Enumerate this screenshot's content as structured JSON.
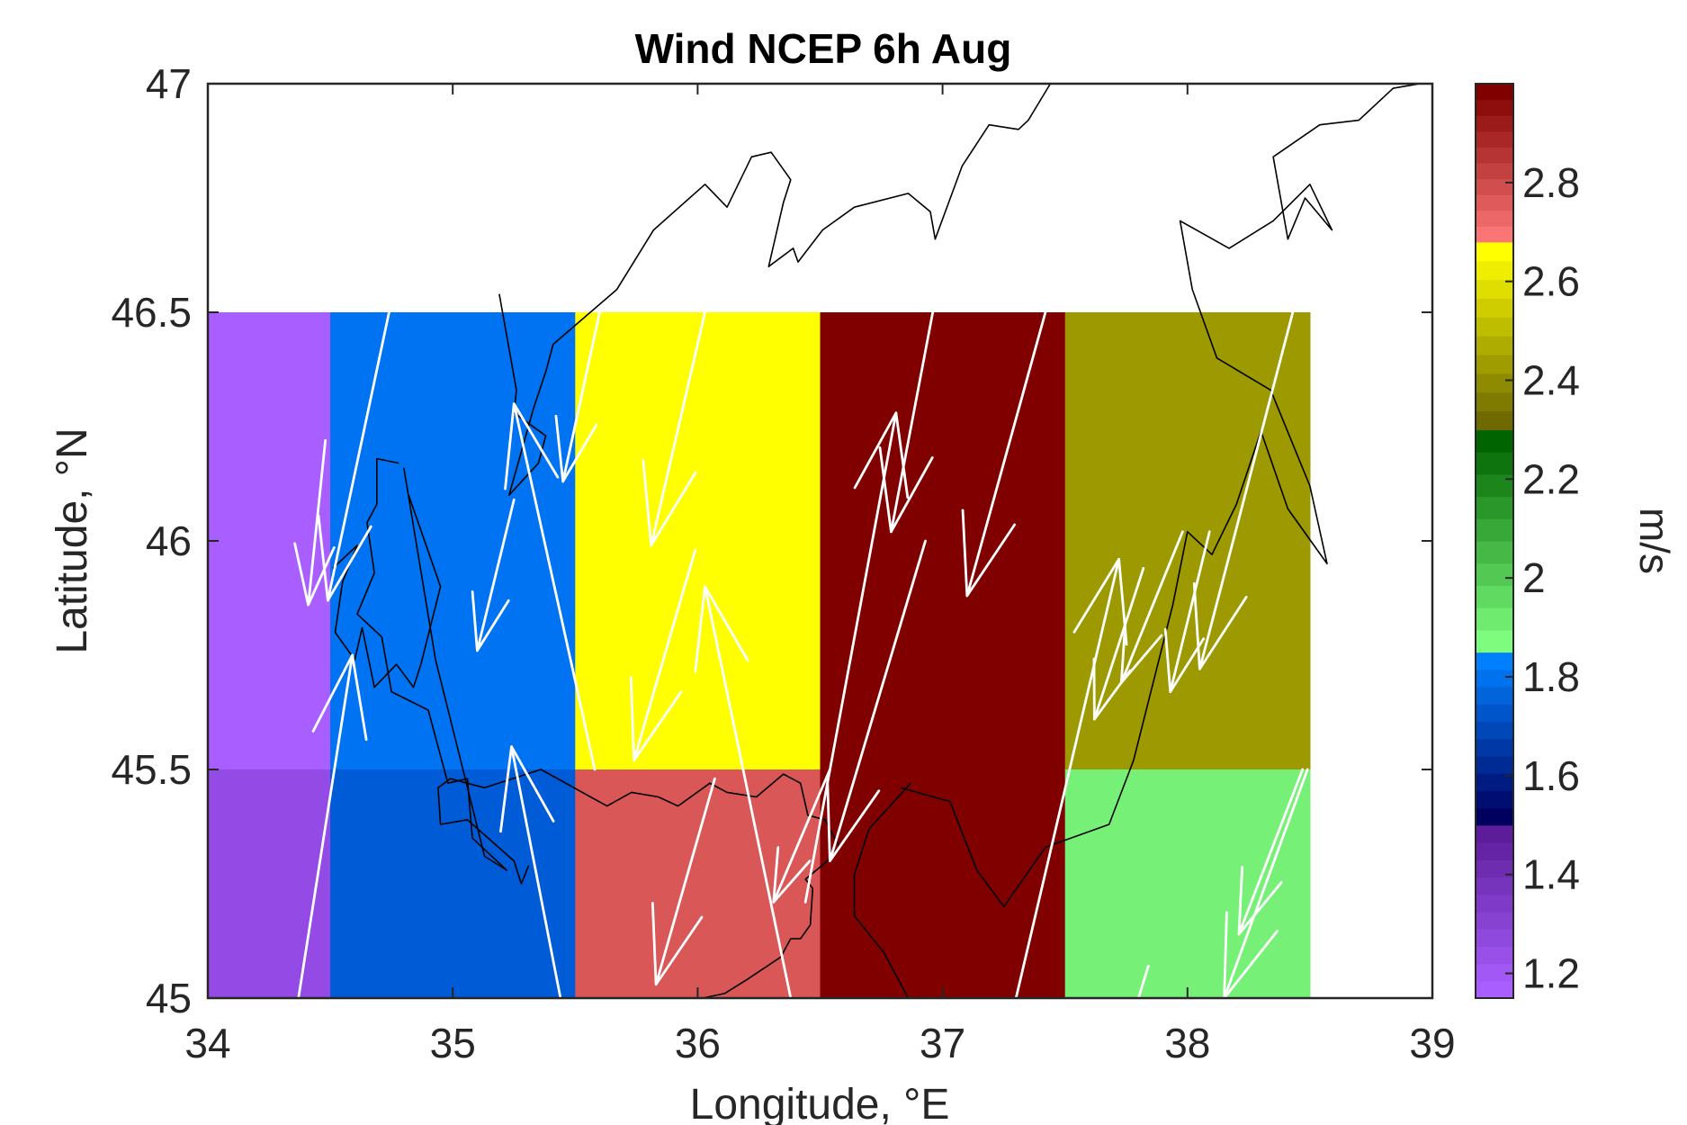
{
  "chart_data": {
    "type": "heatmap",
    "title": "Wind NCEP 6h Aug",
    "xlabel": "Longitude, °E",
    "ylabel": "Latitude, °N",
    "xlim": [
      34,
      39
    ],
    "ylim": [
      45,
      47
    ],
    "xticks": [
      "34",
      "35",
      "36",
      "37",
      "38",
      "39"
    ],
    "yticks": [
      "45",
      "45.5",
      "46",
      "46.5",
      "47"
    ],
    "grid": false,
    "colorbar": {
      "label": "m/s",
      "range": [
        1.15,
        3.0
      ],
      "ticks": [
        "1.2",
        "1.4",
        "1.6",
        "1.8",
        "2",
        "2.2",
        "2.4",
        "2.6",
        "2.8"
      ],
      "segments": [
        {
          "from": 1.15,
          "to": 1.5,
          "color_low": "#a95fff",
          "color_high": "#5d1d9a"
        },
        {
          "from": 1.5,
          "to": 1.85,
          "color_low": "#00005f",
          "color_high": "#0080ff"
        },
        {
          "from": 1.85,
          "to": 2.3,
          "color_low": "#7dfc7d",
          "color_high": "#006400"
        },
        {
          "from": 2.3,
          "to": 2.68,
          "color_low": "#6f6a00",
          "color_high": "#ffff00"
        },
        {
          "from": 2.68,
          "to": 3.0,
          "color_low": "#fa7575",
          "color_high": "#800000"
        }
      ]
    },
    "cells": [
      {
        "lon": [
          34.0,
          34.5
        ],
        "lat": [
          45.5,
          46.5
        ],
        "value": 1.15,
        "color": "#a95fff"
      },
      {
        "lon": [
          34.0,
          34.5
        ],
        "lat": [
          45.0,
          45.5
        ],
        "value": 1.3,
        "color": "#944ae5"
      },
      {
        "lon": [
          34.5,
          35.5
        ],
        "lat": [
          45.5,
          46.5
        ],
        "value": 1.78,
        "color": "#0073f2"
      },
      {
        "lon": [
          34.5,
          35.5
        ],
        "lat": [
          45.0,
          45.5
        ],
        "value": 1.72,
        "color": "#005bd6"
      },
      {
        "lon": [
          35.5,
          36.5
        ],
        "lat": [
          45.5,
          46.5
        ],
        "value": 2.65,
        "color": "#ffff00"
      },
      {
        "lon": [
          35.5,
          36.5
        ],
        "lat": [
          45.0,
          45.5
        ],
        "value": 2.85,
        "color": "#d95757"
      },
      {
        "lon": [
          36.5,
          37.5
        ],
        "lat": [
          45.0,
          46.5
        ],
        "value": 2.99,
        "color": "#800000"
      },
      {
        "lon": [
          37.5,
          38.5
        ],
        "lat": [
          45.5,
          46.5
        ],
        "value": 2.45,
        "color": "#9d9900"
      },
      {
        "lon": [
          37.5,
          38.5
        ],
        "lat": [
          45.0,
          45.5
        ],
        "value": 1.92,
        "color": "#77f077"
      }
    ],
    "arrows": [
      {
        "lon": [
          34.48,
          34.41
        ],
        "lat": [
          46.22,
          45.86
        ]
      },
      {
        "lon": [
          34.74,
          34.49
        ],
        "lat": [
          46.5,
          45.87
        ]
      },
      {
        "lon": [
          34.37,
          34.59
        ],
        "lat": [
          45.0,
          45.75
        ]
      },
      {
        "lon": [
          35.25,
          35.1
        ],
        "lat": [
          46.09,
          45.76
        ]
      },
      {
        "lon": [
          35.6,
          35.45
        ],
        "lat": [
          46.5,
          46.13
        ]
      },
      {
        "lon": [
          35.44,
          35.24
        ],
        "lat": [
          45.0,
          45.55
        ]
      },
      {
        "lon": [
          35.58,
          35.25
        ],
        "lat": [
          45.5,
          46.3
        ]
      },
      {
        "lon": [
          35.99,
          35.74
        ],
        "lat": [
          45.98,
          45.52
        ]
      },
      {
        "lon": [
          36.03,
          35.81
        ],
        "lat": [
          46.5,
          45.99
        ]
      },
      {
        "lon": [
          36.38,
          36.03
        ],
        "lat": [
          45.0,
          45.9
        ]
      },
      {
        "lon": [
          36.07,
          35.83
        ],
        "lat": [
          45.48,
          45.03
        ]
      },
      {
        "lon": [
          36.54,
          36.31
        ],
        "lat": [
          45.5,
          45.21
        ]
      },
      {
        "lon": [
          36.93,
          36.54
        ],
        "lat": [
          46.0,
          45.3
        ]
      },
      {
        "lon": [
          36.44,
          36.81
        ],
        "lat": [
          45.21,
          46.28
        ]
      },
      {
        "lon": [
          36.96,
          36.79
        ],
        "lat": [
          46.5,
          46.02
        ]
      },
      {
        "lon": [
          37.42,
          37.1
        ],
        "lat": [
          46.5,
          45.88
        ]
      },
      {
        "lon": [
          37.3,
          37.72
        ],
        "lat": [
          45.0,
          45.96
        ]
      },
      {
        "lon": [
          37.82,
          37.62
        ],
        "lat": [
          45.94,
          45.61
        ]
      },
      {
        "lon": [
          37.98,
          37.73
        ],
        "lat": [
          46.02,
          45.69
        ]
      },
      {
        "lon": [
          38.09,
          37.93
        ],
        "lat": [
          46.02,
          45.67
        ]
      },
      {
        "lon": [
          38.43,
          38.05
        ],
        "lat": [
          46.5,
          45.72
        ]
      },
      {
        "lon": [
          38.47,
          38.21
        ],
        "lat": [
          45.5,
          45.14
        ]
      },
      {
        "lon": [
          37.84,
          37.8
        ],
        "lat": [
          45.07,
          45.0
        ]
      },
      {
        "lon": [
          38.49,
          38.15
        ],
        "lat": [
          45.5,
          45.0
        ]
      }
    ],
    "coastline": [
      [
        [
          35.19,
          46.54
        ],
        [
          35.26,
          46.33
        ],
        [
          35.25,
          46.28
        ],
        [
          35.38,
          46.23
        ],
        [
          35.35,
          46.17
        ],
        [
          35.23,
          46.1
        ],
        [
          35.33,
          46.29
        ],
        [
          35.38,
          46.37
        ],
        [
          35.41,
          46.43
        ],
        [
          35.67,
          46.55
        ],
        [
          35.82,
          46.68
        ],
        [
          36.03,
          46.78
        ],
        [
          36.12,
          46.73
        ],
        [
          36.22,
          46.84
        ],
        [
          36.3,
          46.85
        ],
        [
          36.38,
          46.79
        ],
        [
          36.35,
          46.74
        ],
        [
          36.29,
          46.6
        ],
        [
          36.39,
          46.64
        ],
        [
          36.41,
          46.61
        ],
        [
          36.51,
          46.68
        ],
        [
          36.64,
          46.73
        ],
        [
          36.86,
          46.76
        ],
        [
          36.95,
          46.72
        ],
        [
          36.97,
          46.66
        ],
        [
          37.08,
          46.82
        ],
        [
          37.19,
          46.91
        ],
        [
          37.31,
          46.9
        ],
        [
          37.35,
          46.92
        ],
        [
          37.44,
          47.0
        ]
      ],
      [
        [
          35.31,
          45.29
        ],
        [
          35.28,
          45.25
        ],
        [
          35.25,
          45.3
        ],
        [
          35.06,
          45.39
        ],
        [
          34.95,
          45.38
        ],
        [
          34.94,
          45.46
        ],
        [
          34.99,
          45.48
        ],
        [
          35.13,
          45.46
        ],
        [
          35.36,
          45.5
        ],
        [
          35.63,
          45.42
        ],
        [
          35.73,
          45.45
        ],
        [
          35.84,
          45.44
        ],
        [
          35.92,
          45.42
        ],
        [
          36.05,
          45.47
        ],
        [
          36.12,
          45.45
        ],
        [
          36.24,
          45.44
        ],
        [
          36.35,
          45.49
        ],
        [
          36.42,
          45.47
        ],
        [
          36.45,
          45.4
        ],
        [
          36.52,
          45.39
        ],
        [
          36.58,
          45.33
        ],
        [
          36.53,
          45.3
        ],
        [
          36.44,
          45.26
        ],
        [
          36.47,
          45.24
        ],
        [
          36.46,
          45.16
        ],
        [
          36.42,
          45.13
        ],
        [
          36.38,
          45.13
        ],
        [
          36.34,
          45.09
        ],
        [
          36.2,
          45.04
        ],
        [
          36.11,
          45.01
        ],
        [
          36.02,
          45.0
        ]
      ],
      [
        [
          34.78,
          46.17
        ],
        [
          34.69,
          46.18
        ],
        [
          34.69,
          46.08
        ],
        [
          34.65,
          46.04
        ],
        [
          34.68,
          45.93
        ],
        [
          34.61,
          45.84
        ],
        [
          34.71,
          45.79
        ],
        [
          34.75,
          45.67
        ],
        [
          34.9,
          45.63
        ],
        [
          34.98,
          45.47
        ],
        [
          35.06,
          45.48
        ],
        [
          35.08,
          45.35
        ],
        [
          35.22,
          45.28
        ],
        [
          35.13,
          45.31
        ],
        [
          34.93,
          45.74
        ],
        [
          34.8,
          46.16
        ]
      ],
      [
        [
          34.51,
          45.94
        ],
        [
          34.61,
          45.99
        ],
        [
          34.55,
          45.91
        ],
        [
          34.52,
          45.8
        ],
        [
          34.6,
          45.74
        ],
        [
          34.63,
          45.81
        ],
        [
          34.68,
          45.68
        ],
        [
          34.77,
          45.73
        ],
        [
          34.84,
          45.68
        ],
        [
          34.87,
          45.73
        ],
        [
          34.95,
          45.9
        ],
        [
          34.82,
          46.1
        ]
      ],
      [
        [
          36.87,
          45.47
        ],
        [
          36.7,
          45.37
        ],
        [
          36.64,
          45.27
        ],
        [
          36.64,
          45.18
        ],
        [
          36.76,
          45.1
        ],
        [
          36.86,
          45.0
        ]
      ],
      [
        [
          36.83,
          45.46
        ],
        [
          37.03,
          45.43
        ],
        [
          37.14,
          45.28
        ],
        [
          37.25,
          45.2
        ],
        [
          37.42,
          45.33
        ],
        [
          37.68,
          45.38
        ],
        [
          37.78,
          45.52
        ],
        [
          37.94,
          45.86
        ],
        [
          38.0,
          46.02
        ],
        [
          38.1,
          45.97
        ],
        [
          38.2,
          46.08
        ],
        [
          38.3,
          46.24
        ],
        [
          38.41,
          46.07
        ],
        [
          38.57,
          45.95
        ],
        [
          38.5,
          46.12
        ],
        [
          38.34,
          46.33
        ],
        [
          38.12,
          46.4
        ],
        [
          38.02,
          46.55
        ],
        [
          37.97,
          46.7
        ],
        [
          38.17,
          46.64
        ],
        [
          38.35,
          46.7
        ],
        [
          38.5,
          46.78
        ],
        [
          38.59,
          46.68
        ],
        [
          38.48,
          46.75
        ],
        [
          38.41,
          46.66
        ],
        [
          38.35,
          46.84
        ],
        [
          38.54,
          46.91
        ],
        [
          38.7,
          46.92
        ],
        [
          38.84,
          46.99
        ],
        [
          38.95,
          47.0
        ]
      ]
    ]
  }
}
